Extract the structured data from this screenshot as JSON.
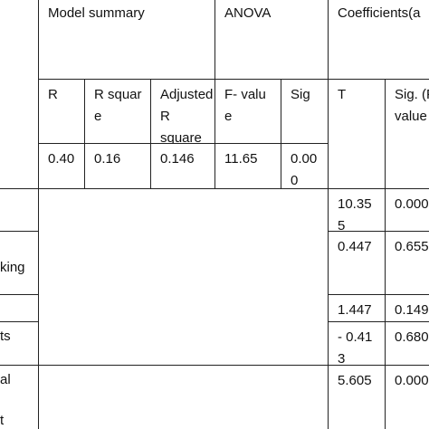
{
  "header": {
    "groups": [
      "Model summary",
      "ANOVA",
      "Coefficients(a"
    ],
    "columns": [
      "R",
      "R square",
      "Adjusted R square",
      "F- value",
      "Sig",
      "T",
      "Sig. (P- value )"
    ]
  },
  "summary_row": [
    "0.40",
    "0.16",
    "0.146",
    "11.65",
    "0.000"
  ],
  "rows": [
    {
      "label": "",
      "t": "10.355",
      "p": "0.000"
    },
    {
      "label": "king",
      "t": "0.447",
      "p": "0.655"
    },
    {
      "label": "",
      "t": "1.447",
      "p": "0.149"
    },
    {
      "label": "ts",
      "t": "- 0.413",
      "p": "0.680"
    },
    {
      "label": "al",
      "label_end": "t",
      "t": "5.605",
      "p": "0.000"
    }
  ]
}
